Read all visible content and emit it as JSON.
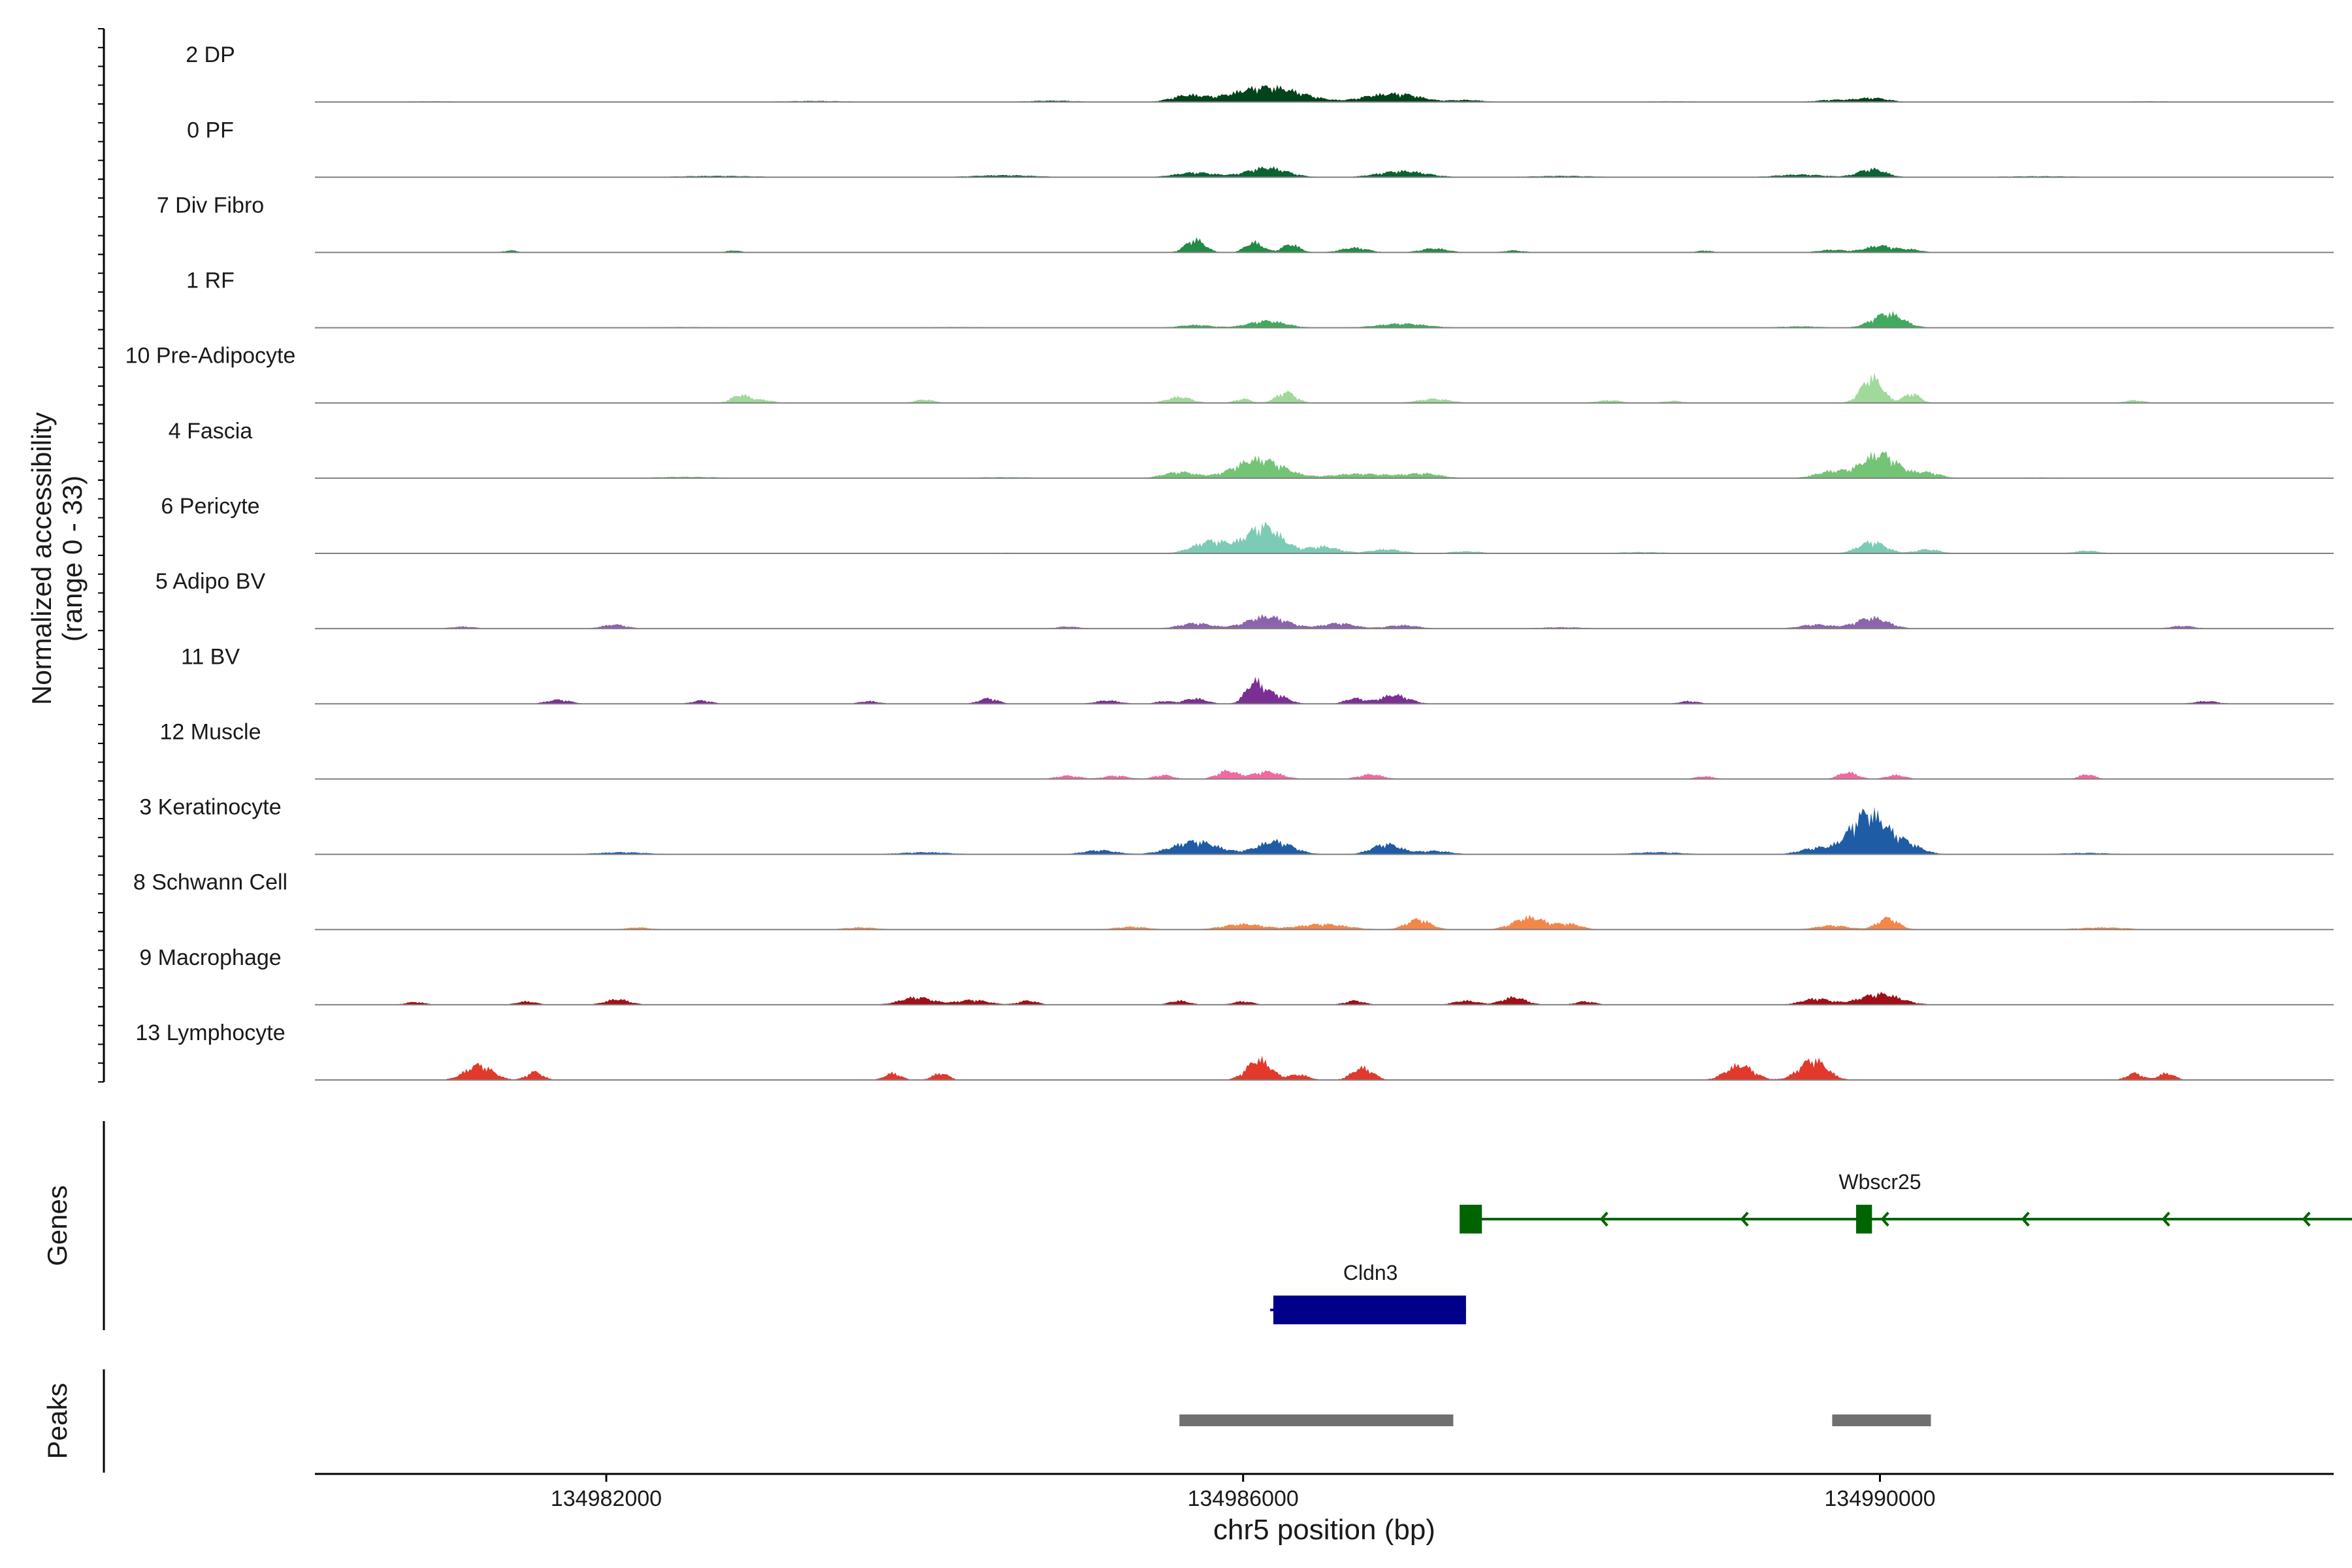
{
  "chart_data": {
    "type": "area",
    "x_axis": {
      "label": "chr5 position (bp)",
      "range": [
        134980170,
        134992850
      ],
      "ticks": [
        134982000,
        134986000,
        134990000
      ],
      "tick_labels": [
        "134982000",
        "134986000",
        "134990000"
      ]
    },
    "y_axis": {
      "label_line1": "Normalized accessibility",
      "label_line2": "(range 0 - 33)",
      "range": [
        0,
        33
      ]
    },
    "tracks": [
      {
        "name": "2 DP",
        "color": "#00441b",
        "peaks": [
          [
            134986150,
            22,
            420
          ],
          [
            134985650,
            9,
            200
          ],
          [
            134986800,
            6,
            200
          ],
          [
            134987000,
            11,
            250
          ],
          [
            134987400,
            3,
            200
          ],
          [
            134989950,
            6,
            200
          ],
          [
            134989700,
            3,
            200
          ],
          [
            134984800,
            2,
            300
          ],
          [
            134983300,
            1.5,
            400
          ],
          [
            134991700,
            1,
            300
          ],
          [
            134980900,
            1,
            300
          ],
          [
            134988700,
            1,
            300
          ]
        ]
      },
      {
        "name": "0 PF",
        "color": "#0a6330",
        "peaks": [
          [
            134986150,
            14,
            250
          ],
          [
            134985700,
            7,
            250
          ],
          [
            134987000,
            9,
            300
          ],
          [
            134989950,
            12,
            170
          ],
          [
            134989500,
            4,
            300
          ],
          [
            134984500,
            3,
            400
          ],
          [
            134982700,
            2,
            500
          ],
          [
            134991000,
            1.5,
            500
          ],
          [
            134988000,
            2,
            400
          ]
        ]
      },
      {
        "name": "7 Div Fibro",
        "color": "#238b45",
        "peaks": [
          [
            134985700,
            19,
            120
          ],
          [
            134986070,
            15,
            110
          ],
          [
            134986300,
            12,
            110
          ],
          [
            134986700,
            7,
            170
          ],
          [
            134987200,
            6,
            170
          ],
          [
            134987700,
            3,
            130
          ],
          [
            134989700,
            4,
            170
          ],
          [
            134990000,
            10,
            180
          ],
          [
            134990200,
            4,
            130
          ],
          [
            134981400,
            3,
            90
          ],
          [
            134982800,
            3,
            90
          ],
          [
            134988900,
            3,
            90
          ]
        ]
      },
      {
        "name": "1 RF",
        "color": "#41ab5d",
        "peaks": [
          [
            134990050,
            21,
            190
          ],
          [
            134986150,
            10,
            230
          ],
          [
            134985700,
            4,
            200
          ],
          [
            134987000,
            6,
            300
          ],
          [
            134989500,
            2,
            250
          ],
          [
            134984200,
            1,
            400
          ],
          [
            134982500,
            1,
            400
          ]
        ]
      },
      {
        "name": "10 Pre-Adipocyte",
        "color": "#a1d99b",
        "peaks": [
          [
            134989950,
            38,
            130
          ],
          [
            134990200,
            14,
            100
          ],
          [
            134982850,
            12,
            120
          ],
          [
            134983000,
            4,
            100
          ],
          [
            134984000,
            5,
            120
          ],
          [
            134985600,
            9,
            150
          ],
          [
            134986000,
            6,
            100
          ],
          [
            134986270,
            16,
            120
          ],
          [
            134987200,
            6,
            200
          ],
          [
            134988300,
            4,
            150
          ],
          [
            134988700,
            3,
            120
          ],
          [
            134991600,
            4,
            120
          ]
        ]
      },
      {
        "name": "4 Fascia",
        "color": "#74c476",
        "peaks": [
          [
            134986100,
            28,
            300
          ],
          [
            134985600,
            9,
            200
          ],
          [
            134990000,
            36,
            220
          ],
          [
            134989700,
            10,
            200
          ],
          [
            134990300,
            8,
            160
          ],
          [
            134986700,
            6,
            300
          ],
          [
            134987150,
            5,
            200
          ],
          [
            134987000,
            3,
            300
          ],
          [
            134982500,
            2,
            400
          ],
          [
            134984500,
            1.5,
            400
          ],
          [
            134991000,
            1,
            400
          ]
        ]
      },
      {
        "name": "6 Pericyte",
        "color": "#7ccbb6",
        "peaks": [
          [
            134986130,
            40,
            220
          ],
          [
            134985800,
            18,
            220
          ],
          [
            134986500,
            10,
            200
          ],
          [
            134986900,
            6,
            200
          ],
          [
            134987400,
            3,
            200
          ],
          [
            134989950,
            17,
            170
          ],
          [
            134990300,
            6,
            150
          ],
          [
            134991300,
            4,
            150
          ],
          [
            134988500,
            2,
            300
          ],
          [
            134984500,
            1,
            400
          ]
        ]
      },
      {
        "name": "5 Adipo BV",
        "color": "#8c64ad",
        "peaks": [
          [
            134986150,
            18,
            250
          ],
          [
            134985700,
            8,
            200
          ],
          [
            134986600,
            8,
            200
          ],
          [
            134987000,
            5,
            200
          ],
          [
            134989950,
            16,
            200
          ],
          [
            134989600,
            6,
            200
          ],
          [
            134982050,
            6,
            150
          ],
          [
            134984900,
            3,
            150
          ],
          [
            134981100,
            3,
            150
          ],
          [
            134991900,
            4,
            150
          ],
          [
            134988000,
            2,
            300
          ]
        ]
      },
      {
        "name": "11 BV",
        "color": "#7b2f95",
        "peaks": [
          [
            134986070,
            30,
            110
          ],
          [
            134986200,
            14,
            150
          ],
          [
            134985700,
            8,
            140
          ],
          [
            134986700,
            8,
            120
          ],
          [
            134986950,
            13,
            180
          ],
          [
            134984400,
            8,
            120
          ],
          [
            134981700,
            6,
            150
          ],
          [
            134982600,
            5,
            120
          ],
          [
            134983650,
            4,
            120
          ],
          [
            134985150,
            5,
            150
          ],
          [
            134985500,
            4,
            100
          ],
          [
            134988800,
            4,
            120
          ],
          [
            134992050,
            4,
            150
          ]
        ]
      },
      {
        "name": "12 Muscle",
        "color": "#f467a3",
        "peaks": [
          [
            134985900,
            12,
            130
          ],
          [
            134986150,
            11,
            180
          ],
          [
            134985500,
            6,
            120
          ],
          [
            134985200,
            5,
            150
          ],
          [
            134984900,
            5,
            150
          ],
          [
            134986800,
            7,
            150
          ],
          [
            134989800,
            10,
            120
          ],
          [
            134990100,
            6,
            120
          ],
          [
            134988900,
            4,
            120
          ],
          [
            134991300,
            7,
            100
          ]
        ]
      },
      {
        "name": "3 Keratinocyte",
        "color": "#1f5ca6",
        "peaks": [
          [
            134989920,
            60,
            220
          ],
          [
            134990150,
            16,
            200
          ],
          [
            134989600,
            9,
            200
          ],
          [
            134985700,
            19,
            280
          ],
          [
            134986200,
            19,
            220
          ],
          [
            134986900,
            15,
            180
          ],
          [
            134987200,
            5,
            200
          ],
          [
            134985100,
            6,
            200
          ],
          [
            134984000,
            3,
            300
          ],
          [
            134982100,
            3,
            300
          ],
          [
            134988600,
            3,
            300
          ],
          [
            134991300,
            2,
            300
          ]
        ]
      },
      {
        "name": "8 Schwann Cell",
        "color": "#f3874a",
        "peaks": [
          [
            134987100,
            15,
            150
          ],
          [
            134987800,
            18,
            200
          ],
          [
            134988050,
            8,
            150
          ],
          [
            134986500,
            8,
            300
          ],
          [
            134986000,
            8,
            250
          ],
          [
            134990050,
            17,
            130
          ],
          [
            134989700,
            6,
            200
          ],
          [
            134982200,
            3,
            150
          ],
          [
            134983600,
            3,
            200
          ],
          [
            134985300,
            4,
            200
          ],
          [
            134991400,
            3,
            300
          ]
        ]
      },
      {
        "name": "9 Macrophage",
        "color": "#a10f17",
        "peaks": [
          [
            134983950,
            11,
            200
          ],
          [
            134984300,
            7,
            200
          ],
          [
            134984650,
            6,
            120
          ],
          [
            134982070,
            8,
            150
          ],
          [
            134981500,
            5,
            120
          ],
          [
            134990000,
            16,
            250
          ],
          [
            134989600,
            9,
            180
          ],
          [
            134987700,
            11,
            150
          ],
          [
            134987400,
            6,
            150
          ],
          [
            134988150,
            5,
            120
          ],
          [
            134986700,
            6,
            120
          ],
          [
            134986000,
            5,
            120
          ],
          [
            134985600,
            6,
            120
          ],
          [
            134980800,
            4,
            120
          ]
        ]
      },
      {
        "name": "13 Lymphocyte",
        "color": "#e3382c",
        "peaks": [
          [
            134981200,
            22,
            170
          ],
          [
            134981550,
            12,
            100
          ],
          [
            134986100,
            30,
            150
          ],
          [
            134986350,
            8,
            120
          ],
          [
            134986750,
            18,
            130
          ],
          [
            134989120,
            22,
            170
          ],
          [
            134989580,
            30,
            170
          ],
          [
            134983800,
            10,
            100
          ],
          [
            134984100,
            10,
            100
          ],
          [
            134991600,
            10,
            100
          ],
          [
            134991800,
            10,
            100
          ]
        ]
      }
    ],
    "genes": [
      {
        "name": "Wbscr25",
        "color": "#006400",
        "start": 134987430,
        "end": 134993400,
        "strand": "-",
        "exons": [
          [
            134987360,
            134987500
          ],
          [
            134989850,
            134989950
          ]
        ]
      },
      {
        "name": "Cldn3",
        "color": "#00008b",
        "start": 134986170,
        "end": 134987400,
        "strand": "-",
        "exons": [
          [
            134986190,
            134987400
          ]
        ]
      }
    ],
    "peaks": [
      [
        134985600,
        134987320
      ],
      [
        134989700,
        134990320
      ]
    ]
  },
  "labels": {
    "y_title_line1": "Normalized accessibility",
    "y_title_line2": "(range 0 - 33)",
    "genes_panel": "Genes",
    "peaks_panel": "Peaks",
    "x_title": "chr5 position (bp)"
  }
}
